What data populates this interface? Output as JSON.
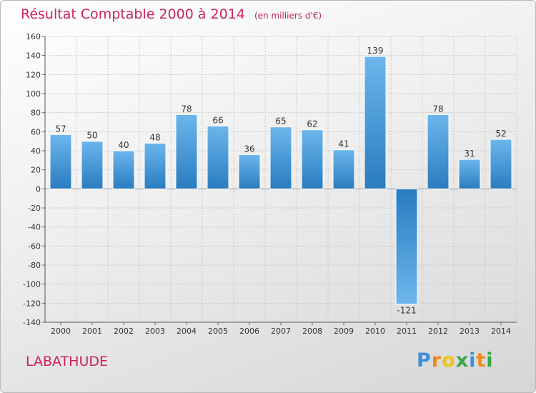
{
  "header": {
    "title": "Résultat Comptable 2000 à 2014",
    "unit": "(en milliers d'€)"
  },
  "footer": {
    "commune": "LABATHUDE",
    "brand": "Proxiti",
    "brand_letters": [
      {
        "ch": "P",
        "color": "#3a8fd8"
      },
      {
        "ch": "r",
        "color": "#f08a1c"
      },
      {
        "ch": "o",
        "color": "#f0c419"
      },
      {
        "ch": "x",
        "color": "#3aa64a"
      },
      {
        "ch": "i",
        "color": "#3a8fd8"
      },
      {
        "ch": "t",
        "color": "#f08a1c"
      },
      {
        "ch": "i",
        "color": "#3aa64a"
      }
    ]
  },
  "colors": {
    "accent": "#c8235a",
    "bar_light": "#6cb6ec",
    "bar_dark": "#2a7cc0",
    "grid": "#c8c8c8",
    "text": "#333333"
  },
  "chart_data": {
    "type": "bar",
    "title": "Résultat Comptable 2000 à 2014",
    "ylabel": "en milliers d'€",
    "xlabel": "",
    "categories": [
      "2000",
      "2001",
      "2002",
      "2003",
      "2004",
      "2005",
      "2006",
      "2007",
      "2008",
      "2009",
      "2010",
      "2011",
      "2012",
      "2013",
      "2014"
    ],
    "values": [
      57,
      50,
      40,
      48,
      78,
      66,
      36,
      65,
      62,
      41,
      139,
      -121,
      78,
      31,
      52
    ],
    "ylim": [
      -140,
      160
    ],
    "yticks": [
      160,
      140,
      120,
      100,
      80,
      60,
      40,
      20,
      0,
      -20,
      -40,
      -60,
      -80,
      -100,
      -120,
      -140
    ],
    "grid": true
  }
}
